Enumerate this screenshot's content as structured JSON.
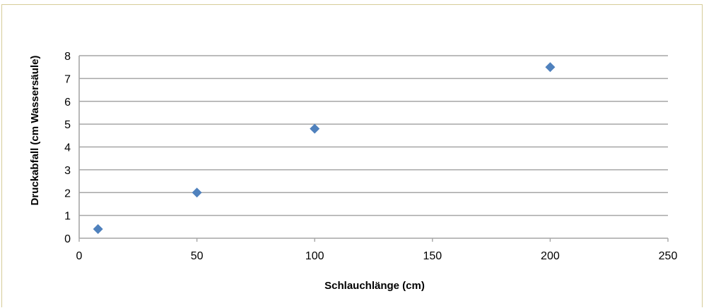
{
  "chart_data": {
    "type": "scatter",
    "xlabel": "Schlauchlänge (cm)",
    "ylabel": "Druckabfall (cm Wassersäule)",
    "xlim": [
      0,
      250
    ],
    "ylim": [
      0,
      8
    ],
    "xticks": [
      0,
      50,
      100,
      150,
      200,
      250
    ],
    "yticks": [
      0,
      1,
      2,
      3,
      4,
      5,
      6,
      7,
      8
    ],
    "grid": "horizontal",
    "legend": "none",
    "marker": "diamond",
    "colors": {
      "marker": "#4f81bd",
      "grid": "#a6a6a6",
      "frame": "#d6cc98"
    },
    "series": [
      {
        "points": [
          {
            "x": 8,
            "y": 0.4
          },
          {
            "x": 50,
            "y": 2.0
          },
          {
            "x": 100,
            "y": 4.8
          },
          {
            "x": 200,
            "y": 7.5
          }
        ]
      }
    ]
  }
}
